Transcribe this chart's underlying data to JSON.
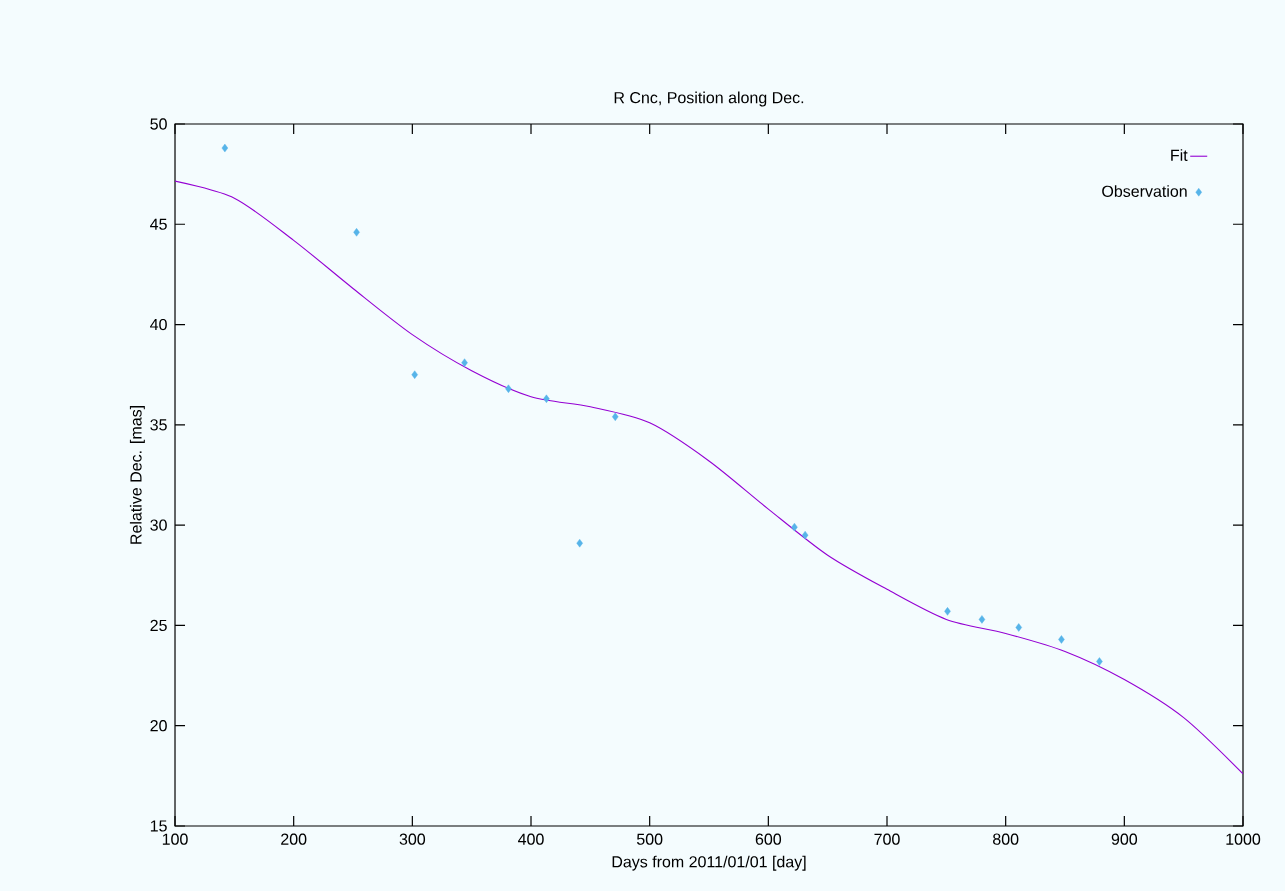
{
  "chart_data": {
    "type": "scatter",
    "title": "R Cnc, Position along Dec.",
    "xlabel": "Days from 2011/01/01 [day]",
    "ylabel": "Relative Dec. [mas]",
    "xlim": [
      100,
      1000
    ],
    "ylim": [
      15,
      50
    ],
    "xticks": [
      100,
      200,
      300,
      400,
      500,
      600,
      700,
      800,
      900,
      1000
    ],
    "yticks": [
      15,
      20,
      25,
      30,
      35,
      40,
      45,
      50
    ],
    "grid": false,
    "legend": "top right",
    "series": [
      {
        "name": "Fit",
        "type": "line",
        "color": "#9400d3",
        "line_style": "solid",
        "x": [
          100,
          150,
          200,
          250,
          300,
          350,
          400,
          450,
          500,
          550,
          600,
          650,
          700,
          750,
          800,
          850,
          900,
          950,
          1000
        ],
        "values": [
          47.15,
          46.3,
          44.2,
          41.8,
          39.5,
          37.7,
          36.4,
          35.9,
          35.1,
          33.2,
          30.8,
          28.5,
          26.8,
          25.3,
          24.6,
          23.7,
          22.3,
          20.4,
          17.6
        ]
      },
      {
        "name": "Observation",
        "marker": "diamond",
        "color": "#56b4e9",
        "x": [
          142,
          253,
          302,
          344,
          381,
          413,
          441,
          471,
          622,
          631,
          751,
          780,
          811,
          847,
          879
        ],
        "values": [
          48.8,
          44.6,
          37.5,
          38.1,
          36.8,
          36.3,
          29.1,
          35.4,
          29.9,
          29.5,
          25.7,
          25.3,
          24.9,
          24.3,
          23.2
        ]
      }
    ]
  }
}
